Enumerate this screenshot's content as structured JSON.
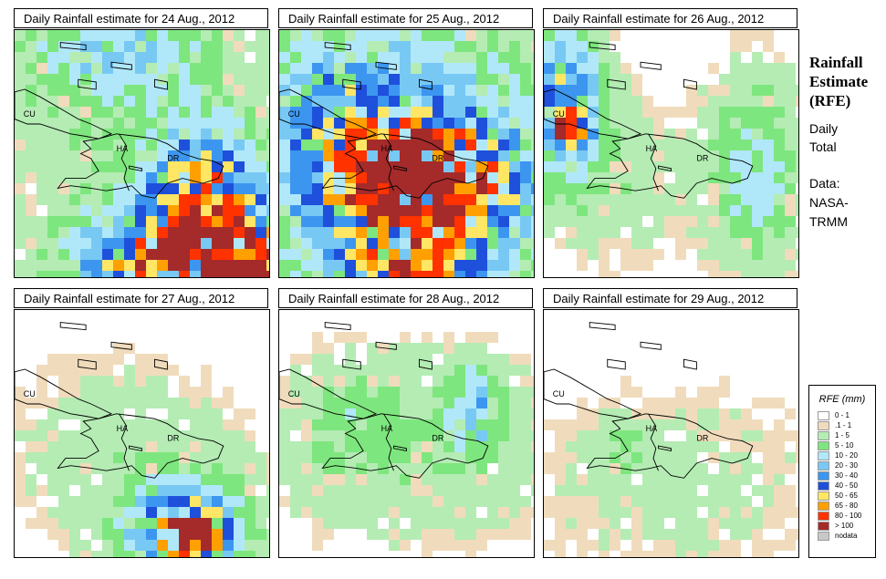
{
  "panels": [
    {
      "title": "Daily Rainfall estimate for  24 Aug., 2012",
      "seed": 24
    },
    {
      "title": "Daily Rainfall estimate for  25 Aug., 2012",
      "seed": 25
    },
    {
      "title": "Daily Rainfall estimate for  26 Aug., 2012",
      "seed": 26
    },
    {
      "title": "Daily Rainfall estimate for  27 Aug., 2012",
      "seed": 27
    },
    {
      "title": "Daily Rainfall estimate for  28 Aug., 2012",
      "seed": 28
    },
    {
      "title": "Daily Rainfall estimate for  29 Aug., 2012",
      "seed": 29
    }
  ],
  "map_labels": {
    "cuba": "CU",
    "haiti": "HA",
    "dominican_republic": "DR"
  },
  "sidebar": {
    "title_line1": "Rainfall",
    "title_line2": "Estimate",
    "title_line3": "(RFE)",
    "daily": "Daily",
    "total": "Total",
    "data_label": "Data:",
    "source_line1": "NASA-",
    "source_line2": "TRMM"
  },
  "legend": {
    "title": "RFE (mm)",
    "items": [
      {
        "label": "0 - 1",
        "color": "#ffffff"
      },
      {
        "label": ".1 - 1",
        "color": "#f0dcbc"
      },
      {
        "label": "1 - 5",
        "color": "#b4ecb4"
      },
      {
        "label": "5 - 10",
        "color": "#7ee67e"
      },
      {
        "label": "10 - 20",
        "color": "#b0e8fa"
      },
      {
        "label": "20 - 30",
        "color": "#78c8f4"
      },
      {
        "label": "30 - 40",
        "color": "#3c96f0"
      },
      {
        "label": "40 - 50",
        "color": "#1e50dc"
      },
      {
        "label": "50 - 65",
        "color": "#ffe664"
      },
      {
        "label": "65 - 80",
        "color": "#ffa000"
      },
      {
        "label": "80 - 100",
        "color": "#ff3200"
      },
      {
        "label": "> 100",
        "color": "#a52a2a"
      },
      {
        "label": "nodata",
        "color": "#c8c8c8"
      }
    ]
  }
}
